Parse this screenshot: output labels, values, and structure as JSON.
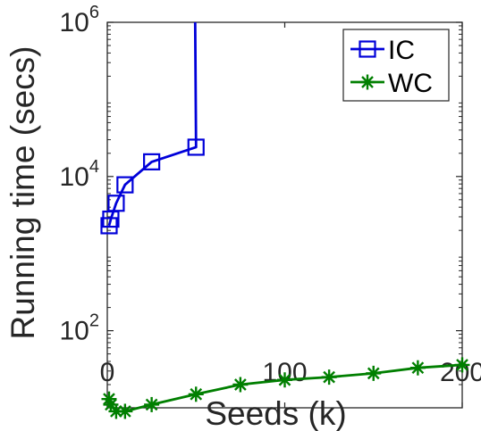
{
  "chart_data": {
    "type": "line",
    "xlabel": "Seeds (k)",
    "ylabel": "Running time (secs)",
    "xlim": [
      0,
      200
    ],
    "ylim": [
      10,
      1000000
    ],
    "yscale": "log",
    "x_ticks": [
      0,
      100,
      200
    ],
    "x_tick_labels": [
      "0",
      "100",
      "200"
    ],
    "y_ticks": [
      100,
      10000,
      1000000
    ],
    "y_tick_labels": [
      {
        "base": "10",
        "exp": "2"
      },
      {
        "base": "10",
        "exp": "4"
      },
      {
        "base": "10",
        "exp": "6"
      }
    ],
    "grid": false,
    "legend_position": "top-right",
    "series": [
      {
        "name": "IC",
        "color": "#0000d9",
        "marker": "square",
        "x": [
          1,
          2,
          5,
          10,
          25,
          50
        ],
        "y": [
          2300,
          2800,
          4500,
          7800,
          15500,
          24000
        ],
        "overflow_to_top_at_x": 50
      },
      {
        "name": "WC",
        "color": "#007f00",
        "marker": "asterisk",
        "x": [
          1,
          2,
          5,
          10,
          25,
          50,
          75,
          100,
          125,
          150,
          175,
          200
        ],
        "y": [
          13,
          11,
          9,
          9,
          11,
          15,
          20,
          23,
          25,
          28,
          33,
          36
        ]
      }
    ]
  }
}
